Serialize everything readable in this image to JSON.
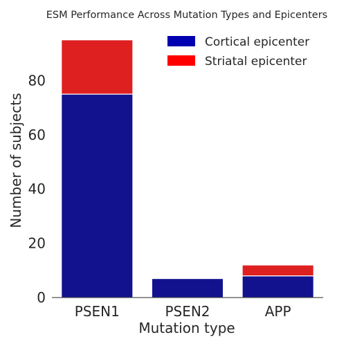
{
  "chart_data": {
    "type": "bar",
    "stacked": true,
    "title": "ESM Performance Across Mutation Types and Epicenters",
    "xlabel": "Mutation type",
    "ylabel": "Number of subjects",
    "categories": [
      "PSEN1",
      "PSEN2",
      "APP"
    ],
    "series": [
      {
        "name": "Cortical epicenter",
        "values": [
          75,
          7,
          8
        ],
        "color": "#12128f",
        "legend_color": "#0000b0"
      },
      {
        "name": "Striatal epicenter",
        "values": [
          20,
          0,
          4
        ],
        "color": "#df2020",
        "legend_color": "#ff0000"
      }
    ],
    "ylim": [
      0,
      97
    ],
    "yticks": [
      0,
      20,
      40,
      60,
      80
    ],
    "grid": false,
    "legend_position": "top-right"
  }
}
